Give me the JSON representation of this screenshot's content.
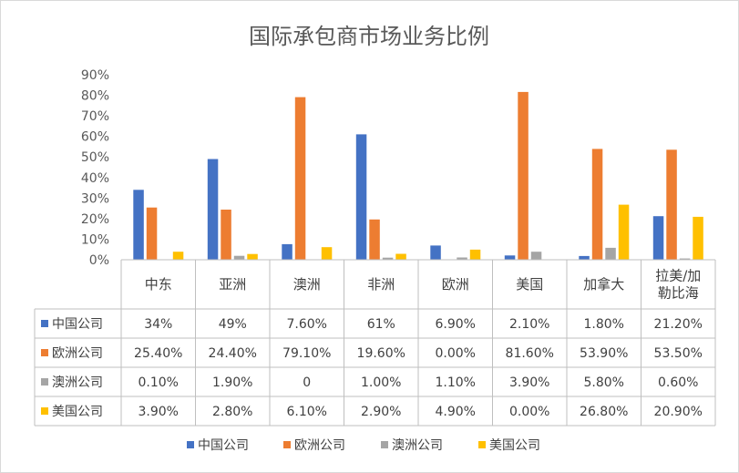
{
  "chart_data": {
    "type": "bar",
    "title": "国际承包商市场业务比例",
    "categories": [
      "中东",
      "亚洲",
      "澳洲",
      "非洲",
      "欧洲",
      "美国",
      "加拿大",
      "拉美/加勒比海"
    ],
    "category_lines": [
      [
        "中东"
      ],
      [
        "亚洲"
      ],
      [
        "澳洲"
      ],
      [
        "非洲"
      ],
      [
        "欧洲"
      ],
      [
        "美国"
      ],
      [
        "加拿大"
      ],
      [
        "拉美/加",
        "勒比海"
      ]
    ],
    "y_ticks": [
      "0%",
      "10%",
      "20%",
      "30%",
      "40%",
      "50%",
      "60%",
      "70%",
      "80%",
      "90%"
    ],
    "ylim": [
      0,
      90
    ],
    "grid": false,
    "legend_position": "bottom",
    "series": [
      {
        "name": "中国公司",
        "color": "#4472c4",
        "values": [
          34,
          49,
          7.6,
          61,
          6.9,
          2.1,
          1.8,
          21.2
        ],
        "labels": [
          "34%",
          "49%",
          "7.60%",
          "61%",
          "6.90%",
          "2.10%",
          "1.80%",
          "21.20%"
        ]
      },
      {
        "name": "欧洲公司",
        "color": "#ed7d31",
        "values": [
          25.4,
          24.4,
          79.1,
          19.6,
          0.0,
          81.6,
          53.9,
          53.5
        ],
        "labels": [
          "25.40%",
          "24.40%",
          "79.10%",
          "19.60%",
          "0.00%",
          "81.60%",
          "53.90%",
          "53.50%"
        ]
      },
      {
        "name": "澳洲公司",
        "color": "#a5a5a5",
        "values": [
          0.1,
          1.9,
          0,
          1.0,
          1.1,
          3.9,
          5.8,
          0.6
        ],
        "labels": [
          "0.10%",
          "1.90%",
          "0",
          "1.00%",
          "1.10%",
          "3.90%",
          "5.80%",
          "0.60%"
        ]
      },
      {
        "name": "美国公司",
        "color": "#ffc000",
        "values": [
          3.9,
          2.8,
          6.1,
          2.9,
          4.9,
          0.0,
          26.8,
          20.9
        ],
        "labels": [
          "3.90%",
          "2.80%",
          "6.10%",
          "2.90%",
          "4.90%",
          "0.00%",
          "26.80%",
          "20.90%"
        ]
      }
    ]
  }
}
